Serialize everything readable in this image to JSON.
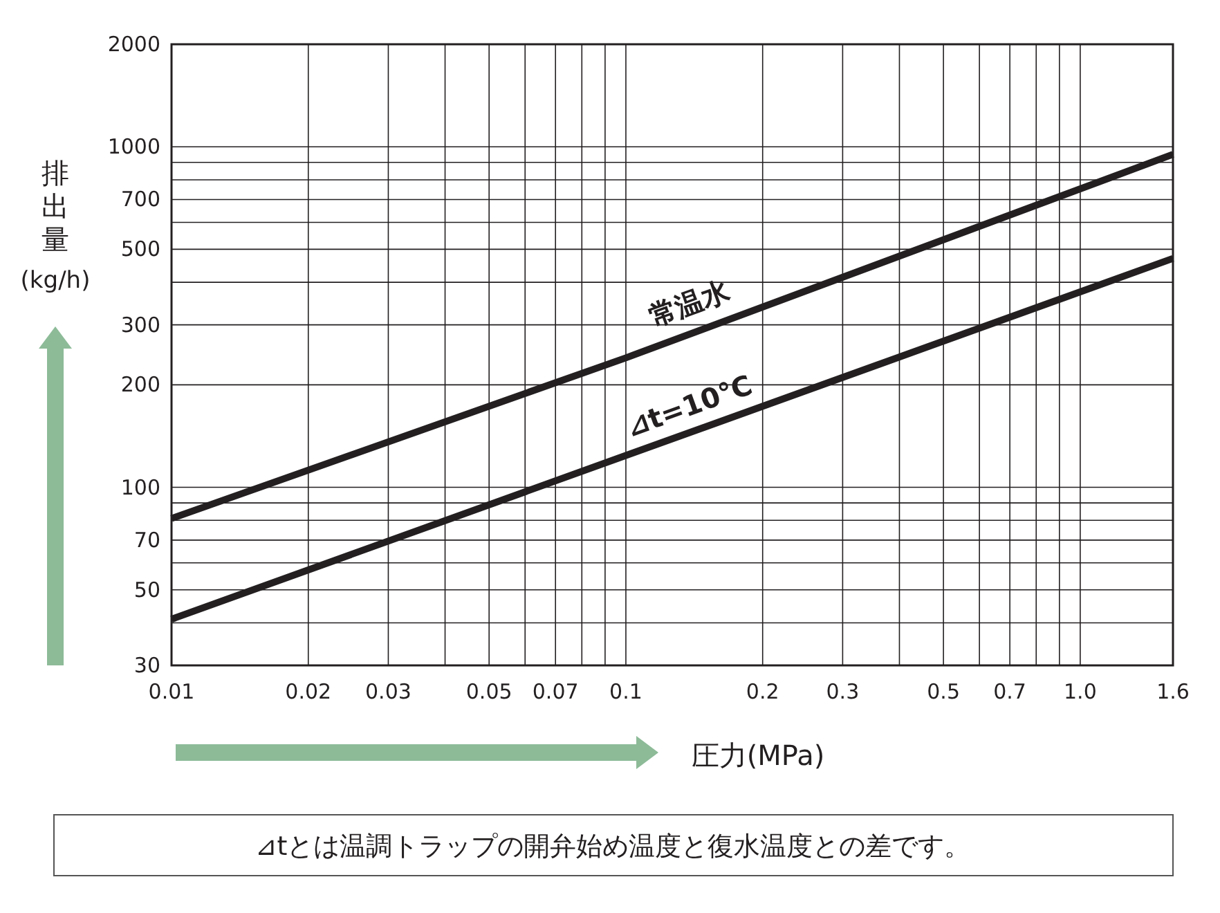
{
  "chart_data": {
    "type": "line",
    "xlabel": "圧力(MPa)",
    "ylabel": "排出量(kg/h)",
    "log": "xy",
    "grid": true,
    "line_style": "solid",
    "xlim": [
      0.01,
      1.6
    ],
    "ylim": [
      30,
      2000
    ],
    "xticks": [
      0.01,
      0.02,
      0.03,
      {
        "value": 0.04,
        "label": null
      },
      0.05,
      {
        "value": 0.06,
        "label": null
      },
      0.07,
      {
        "value": 0.08,
        "label": null
      },
      {
        "value": 0.09,
        "label": null
      },
      0.1,
      0.2,
      0.3,
      {
        "value": 0.4,
        "label": null
      },
      0.5,
      {
        "value": 0.6,
        "label": null
      },
      0.7,
      {
        "value": 0.8,
        "label": null
      },
      {
        "value": 0.9,
        "label": null
      },
      {
        "value": 1.0,
        "label": "1.0"
      },
      1.6
    ],
    "yticks": [
      30,
      {
        "value": 40,
        "label": null
      },
      50,
      {
        "value": 60,
        "label": null
      },
      70,
      {
        "value": 80,
        "label": null
      },
      {
        "value": 90,
        "label": null
      },
      100,
      200,
      300,
      {
        "value": 400,
        "label": null
      },
      500,
      {
        "value": 600,
        "label": null
      },
      700,
      {
        "value": 800,
        "label": null
      },
      {
        "value": 900,
        "label": null
      },
      1000,
      2000
    ],
    "x": [
      0.01,
      0.1,
      1.6
    ],
    "series": [
      {
        "name": "常温水",
        "color": "#231f20",
        "values": [
          81,
          240,
          950
        ]
      },
      {
        "name": "⊿t=10℃",
        "color": "#231f20",
        "values": [
          41,
          124,
          470
        ]
      }
    ],
    "annotations": [
      "⊿tとは温調トラップの開弁始め温度と復水温度との差です。"
    ]
  }
}
